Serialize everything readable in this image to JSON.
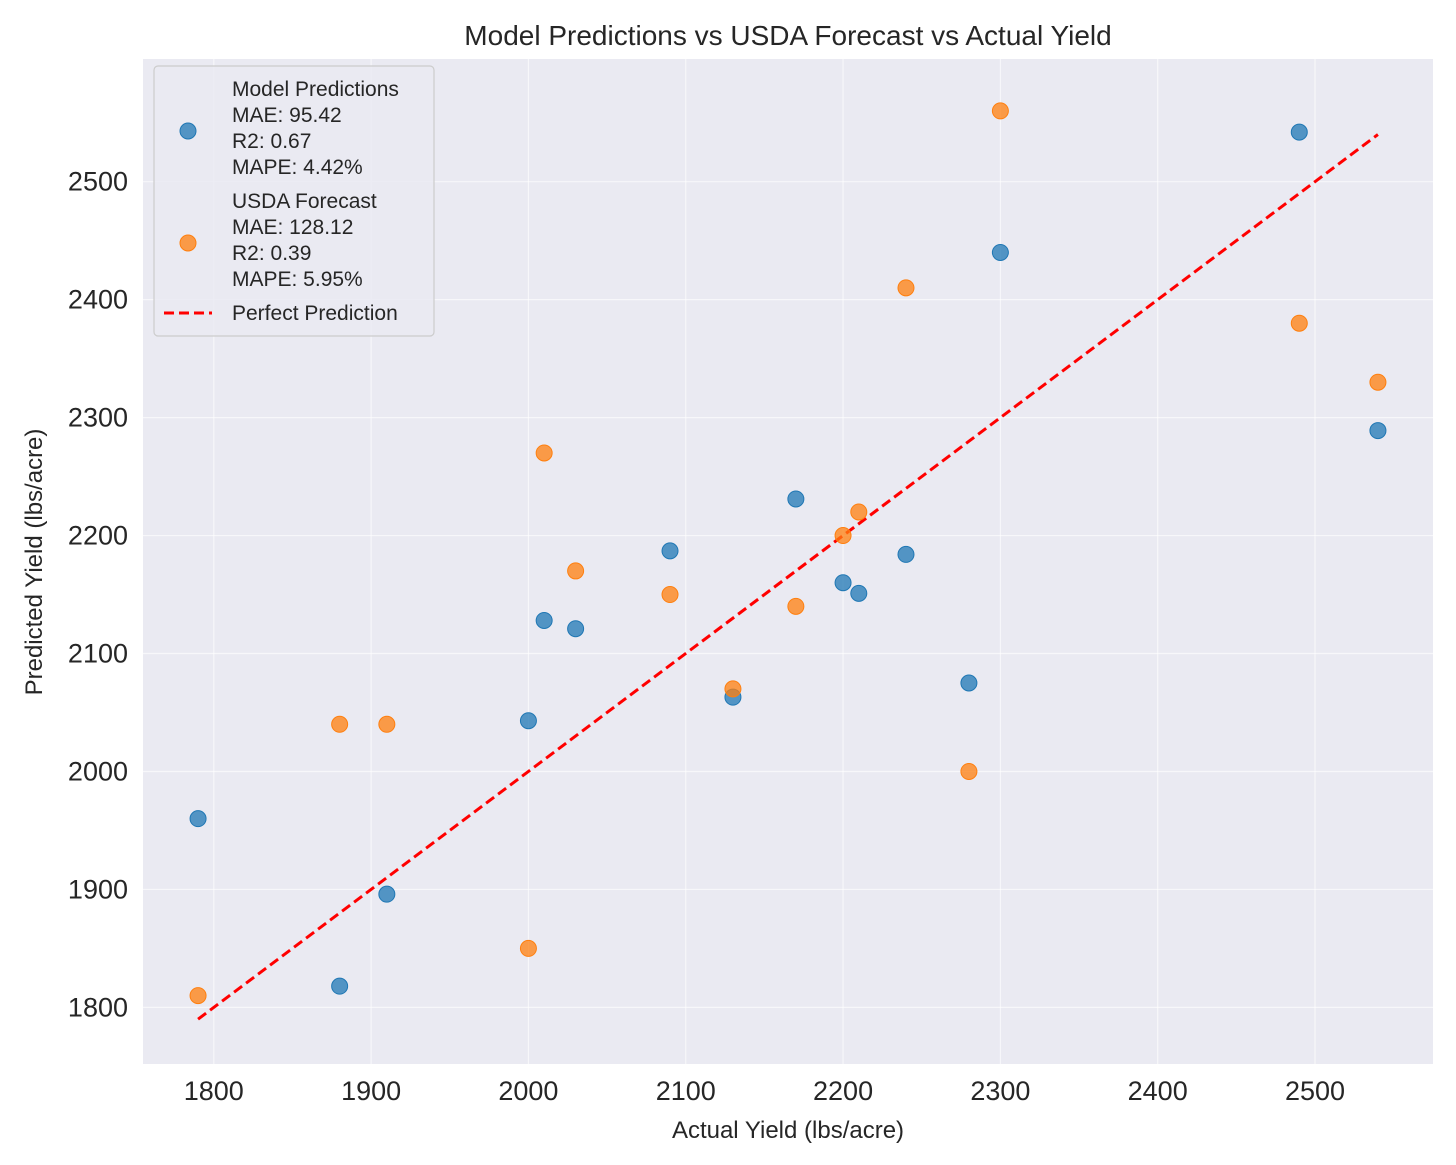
{
  "chart_data": {
    "type": "scatter",
    "title": "Model Predictions vs USDA Forecast vs Actual Yield",
    "xlabel": "Actual Yield (lbs/acre)",
    "ylabel": "Predicted Yield (lbs/acre)",
    "xlim": [
      1755,
      2575
    ],
    "ylim": [
      1752,
      2604
    ],
    "xticks": [
      1800,
      1900,
      2000,
      2100,
      2200,
      2300,
      2400,
      2500
    ],
    "yticks": [
      1800,
      1900,
      2000,
      2100,
      2200,
      2300,
      2400,
      2500
    ],
    "grid": true,
    "legend_position": "top-left",
    "series": [
      {
        "name": "Model Predictions",
        "stats": [
          "MAE: 95.42",
          "R2: 0.67",
          "MAPE: 4.42%"
        ],
        "color": "#1f77b4",
        "x": [
          1790,
          1880,
          1910,
          2000,
          2010,
          2030,
          2090,
          2130,
          2170,
          2200,
          2210,
          2240,
          2280,
          2300,
          2490,
          2540
        ],
        "y": [
          1960,
          1818,
          1896,
          2043,
          2128,
          2121,
          2187,
          2063,
          2231,
          2160,
          2151,
          2184,
          2075,
          2440,
          2542,
          2289
        ]
      },
      {
        "name": "USDA Forecast",
        "stats": [
          "MAE: 128.12",
          "R2: 0.39",
          "MAPE: 5.95%"
        ],
        "color": "#ff7f0e",
        "x": [
          1790,
          1880,
          1910,
          2000,
          2010,
          2030,
          2090,
          2130,
          2170,
          2200,
          2210,
          2240,
          2280,
          2300,
          2490,
          2540
        ],
        "y": [
          1810,
          2040,
          2040,
          1850,
          2270,
          2170,
          2150,
          2070,
          2140,
          2200,
          2220,
          2410,
          2000,
          2560,
          2380,
          2330
        ]
      }
    ],
    "reference_line": {
      "name": "Perfect Prediction",
      "color": "#ff0000",
      "style": "dashed",
      "x": [
        1790,
        2540
      ],
      "y": [
        1790,
        2540
      ]
    }
  }
}
